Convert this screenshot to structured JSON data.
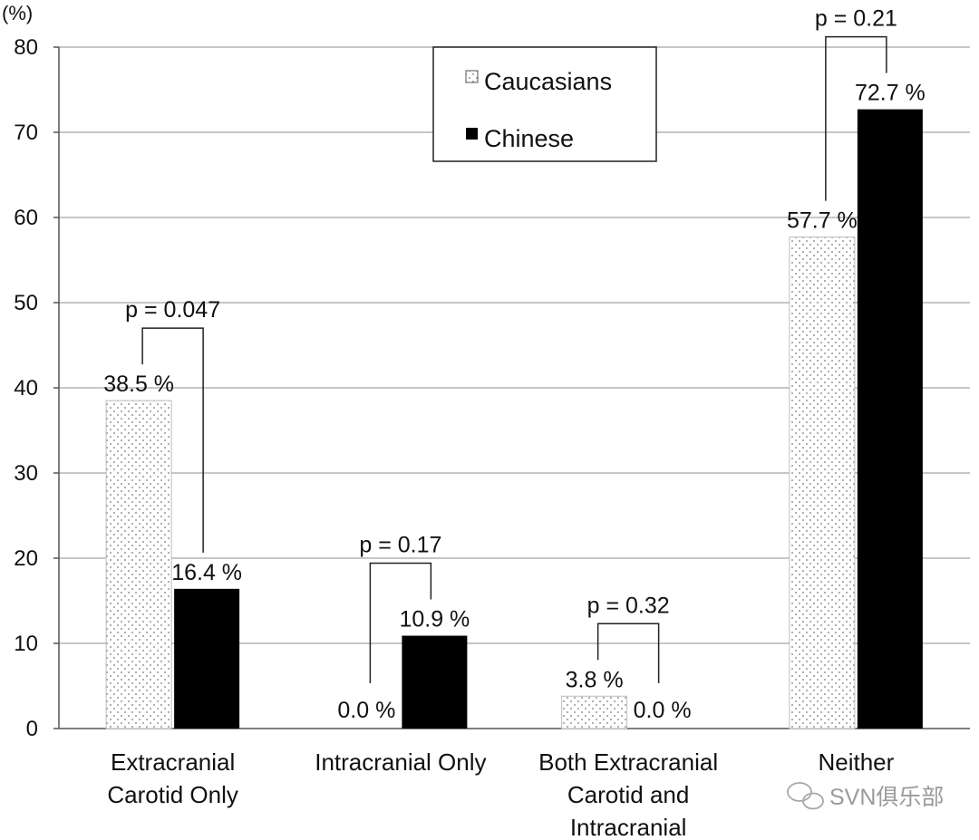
{
  "chart_data": {
    "type": "bar",
    "categories": [
      [
        "Extracranial",
        "Carotid Only"
      ],
      [
        "Intracranial Only"
      ],
      [
        "Both Extracranial",
        "Carotid and",
        "Intracranial"
      ],
      [
        "Neither"
      ]
    ],
    "series": [
      {
        "name": "Caucasians",
        "values": [
          38.5,
          0.0,
          3.8,
          57.7
        ],
        "labels": [
          "38.5 %",
          "0.0 %",
          "3.8 %",
          "57.7 %"
        ],
        "fill": "dotted-white"
      },
      {
        "name": "Chinese",
        "values": [
          16.4,
          10.9,
          0.0,
          72.7
        ],
        "labels": [
          "16.4 %",
          "10.9 %",
          "0.0 %",
          "72.7 %"
        ],
        "color": "#000000"
      }
    ],
    "p_values": [
      "p = 0.047",
      "p = 0.17",
      "p = 0.32",
      "p = 0.21"
    ],
    "ylabel": "(%)",
    "ylim": [
      0,
      80
    ],
    "yticks": [
      0,
      10,
      20,
      30,
      40,
      50,
      60,
      70,
      80
    ],
    "grid": true,
    "legend_position": "top-center"
  },
  "watermark": {
    "text": "SVN俱乐部",
    "icon": "wechat-icon"
  },
  "colors": {
    "grid": "#c6c6c6",
    "axis": "#555555",
    "bar_dark": "#000000",
    "bar_light": "#ffffff",
    "dots": "#777777"
  }
}
